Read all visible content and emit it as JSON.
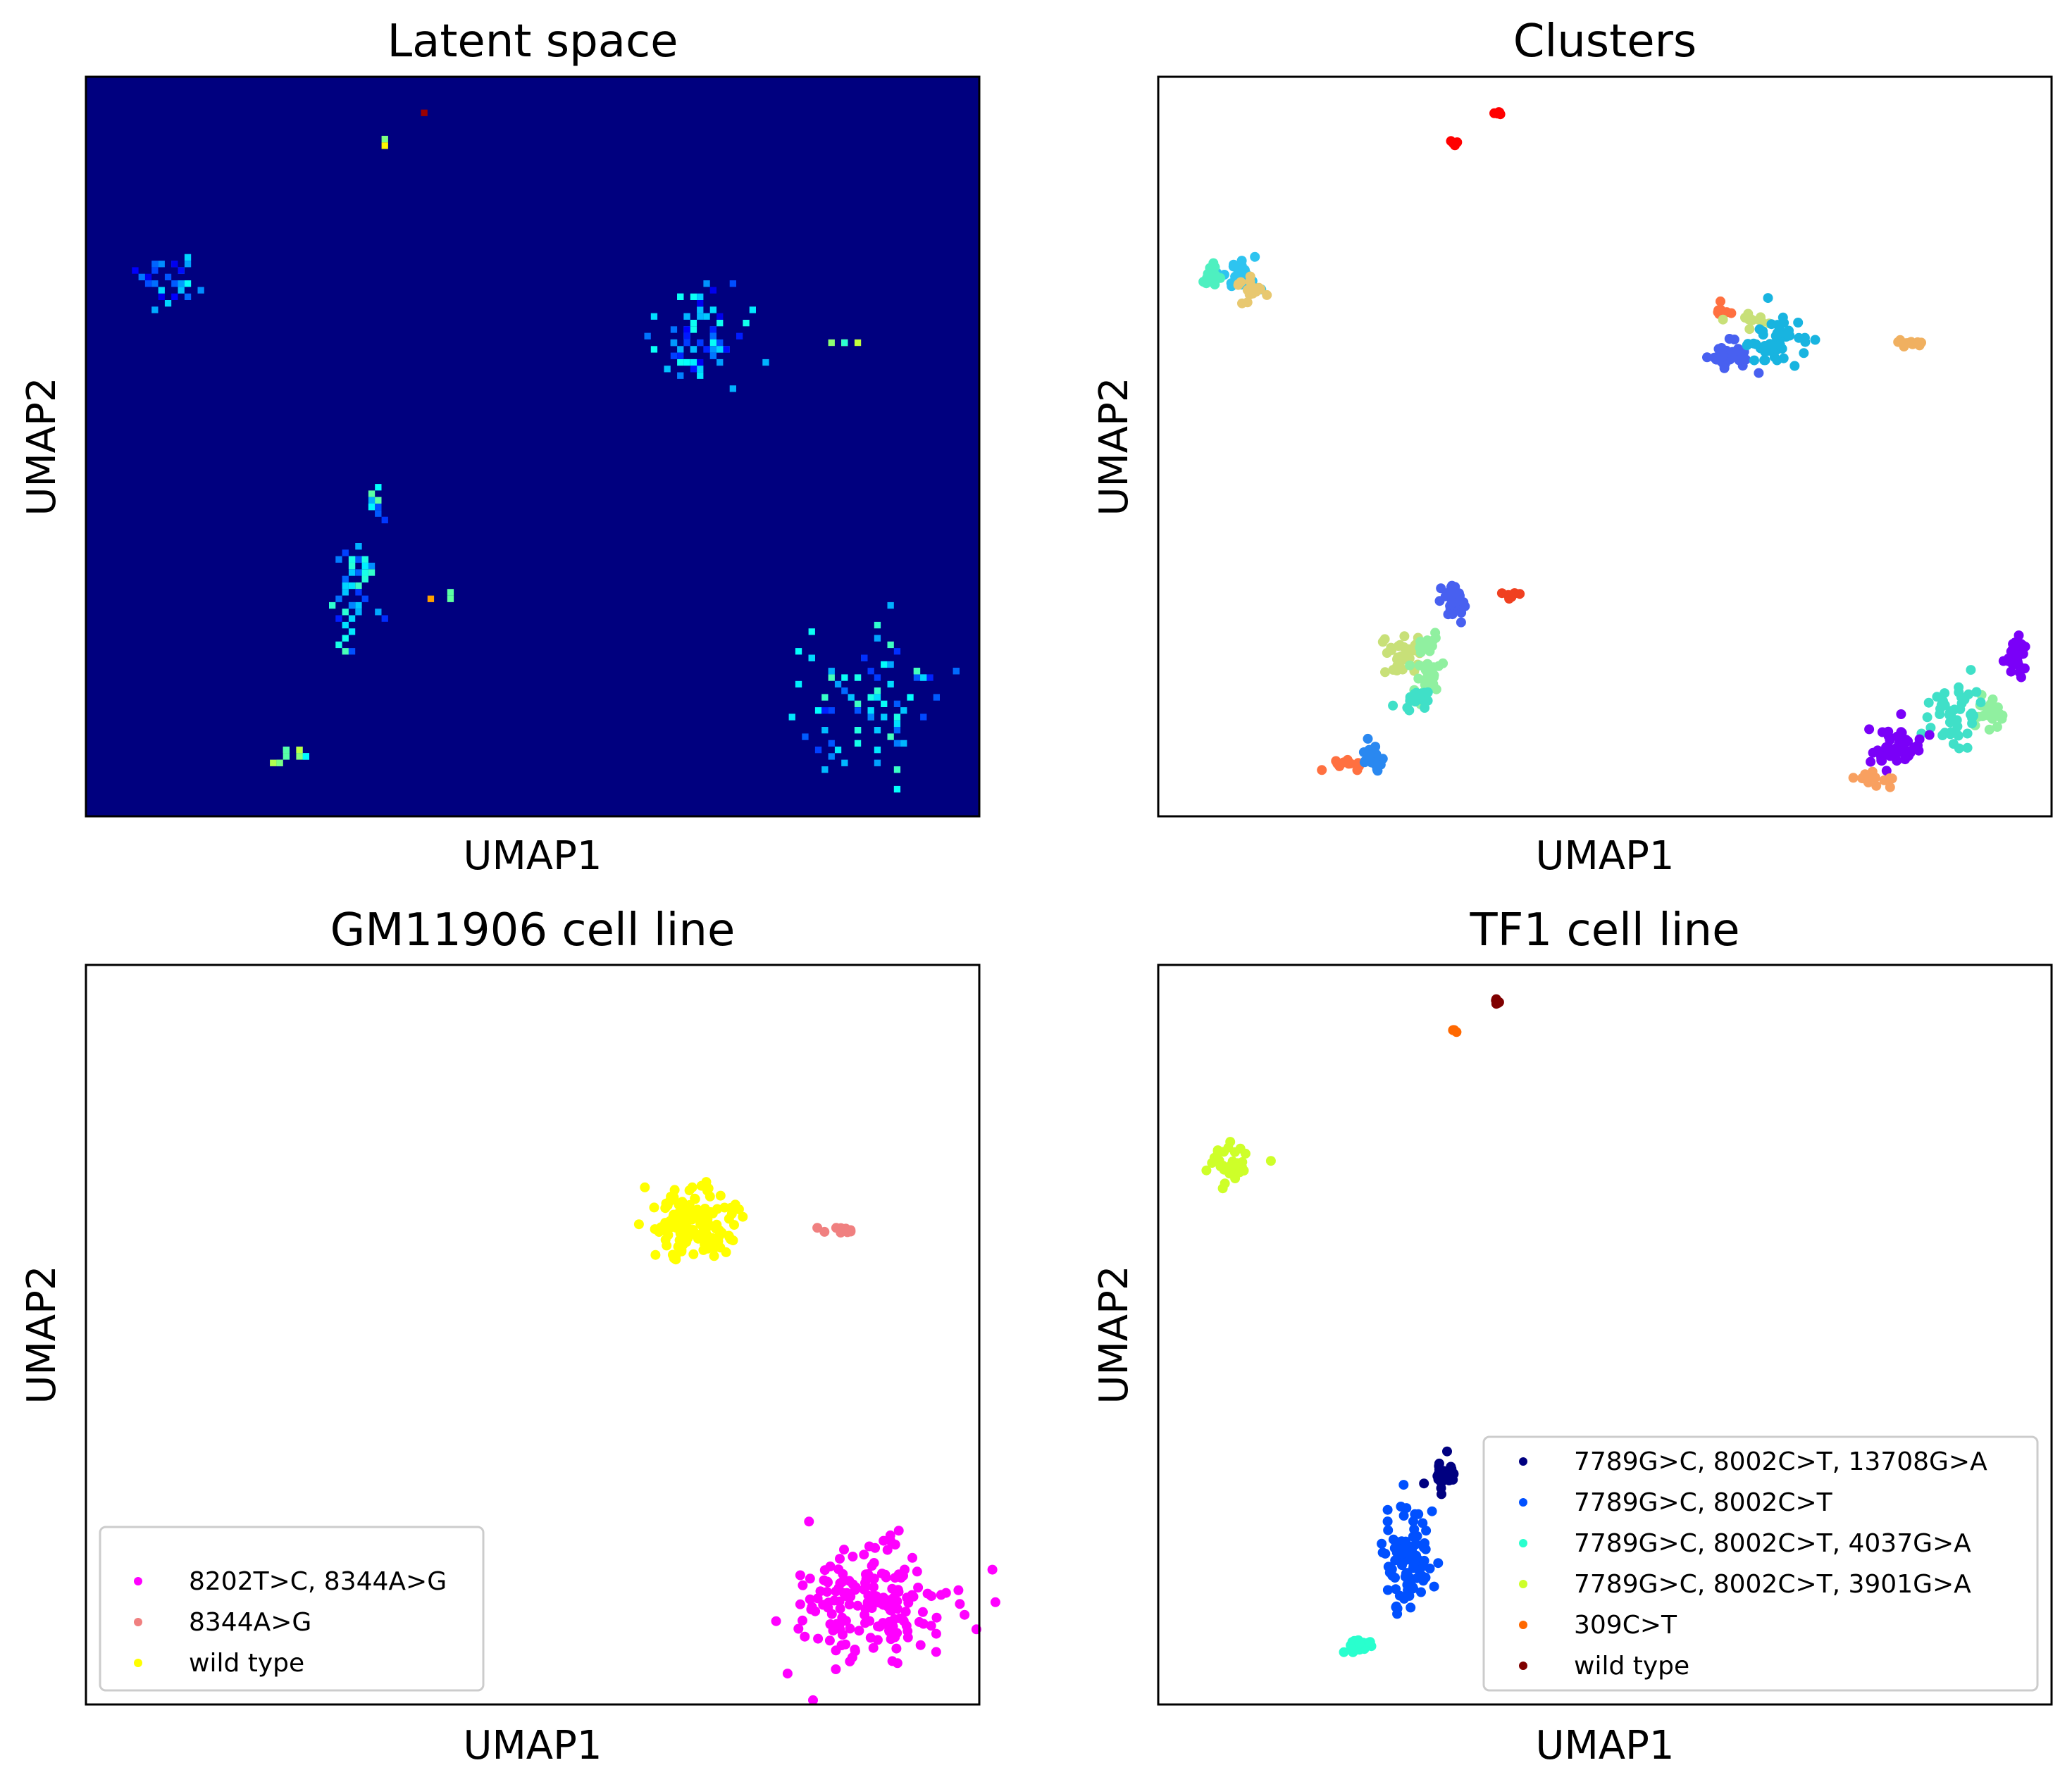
{
  "chart_data": [
    {
      "id": "latent",
      "type": "heatmap",
      "title": "Latent space",
      "xlabel": "UMAP1",
      "ylabel": "UMAP2",
      "colormap": "jet",
      "background_color": "#00007f",
      "xlim": [
        0,
        100
      ],
      "ylim": [
        0,
        100
      ],
      "grid": false,
      "clusters": [
        {
          "x": 9,
          "y": 73,
          "rx": 3,
          "ry": 3,
          "n": 28,
          "level": 0.25
        },
        {
          "x": 68,
          "y": 65,
          "rx": 5,
          "ry": 5,
          "n": 70,
          "level": 0.25
        },
        {
          "x": 85,
          "y": 64,
          "rx": 1.5,
          "ry": 0.5,
          "n": 5,
          "level": 0.55
        },
        {
          "x": 33,
          "y": 91,
          "rx": 0.5,
          "ry": 0.5,
          "n": 2,
          "level": 0.55
        },
        {
          "x": 38,
          "y": 95,
          "rx": 0.3,
          "ry": 0.3,
          "n": 1,
          "level": 0.85
        },
        {
          "x": 30,
          "y": 30,
          "rx": 2,
          "ry": 7,
          "n": 45,
          "level": 0.3
        },
        {
          "x": 33,
          "y": 42,
          "rx": 1,
          "ry": 2,
          "n": 10,
          "level": 0.35
        },
        {
          "x": 40,
          "y": 30,
          "rx": 1,
          "ry": 0.5,
          "n": 3,
          "level": 0.6
        },
        {
          "x": 23,
          "y": 8,
          "rx": 2.5,
          "ry": 1.2,
          "n": 12,
          "level": 0.45
        },
        {
          "x": 88,
          "y": 15,
          "rx": 8,
          "ry": 8,
          "n": 75,
          "level": 0.3
        }
      ]
    },
    {
      "id": "clusters",
      "type": "scatter",
      "title": "Clusters",
      "xlabel": "UMAP1",
      "ylabel": "UMAP2",
      "xlim": [
        0,
        100
      ],
      "ylim": [
        0,
        100
      ],
      "grid": false,
      "series": [
        {
          "color": "#ff0000",
          "groups": [
            {
              "x": 33,
              "y": 91,
              "rx": 0.5,
              "ry": 0.5,
              "n": 5
            },
            {
              "x": 38,
              "y": 95,
              "rx": 0.4,
              "ry": 0.4,
              "n": 5
            }
          ]
        },
        {
          "color": "#2ec4f0",
          "groups": [
            {
              "x": 9,
              "y": 73,
              "rx": 2,
              "ry": 2,
              "n": 25
            }
          ]
        },
        {
          "color": "#4ef0c0",
          "groups": [
            {
              "x": 6,
              "y": 73,
              "rx": 1,
              "ry": 1.5,
              "n": 15
            }
          ]
        },
        {
          "color": "#e8c870",
          "groups": [
            {
              "x": 10,
              "y": 71,
              "rx": 1.5,
              "ry": 1.5,
              "n": 18
            }
          ]
        },
        {
          "color": "#ff7040",
          "groups": [
            {
              "x": 63,
              "y": 68,
              "rx": 1,
              "ry": 1,
              "n": 10
            },
            {
              "x": 21,
              "y": 7,
              "rx": 1.5,
              "ry": 0.5,
              "n": 15
            }
          ]
        },
        {
          "color": "#c8e078",
          "groups": [
            {
              "x": 66,
              "y": 67,
              "rx": 2,
              "ry": 1,
              "n": 12
            },
            {
              "x": 27,
              "y": 22,
              "rx": 2.5,
              "ry": 2,
              "n": 35
            }
          ]
        },
        {
          "color": "#4860f0",
          "groups": [
            {
              "x": 64,
              "y": 62,
              "rx": 2,
              "ry": 1.8,
              "n": 35
            },
            {
              "x": 33,
              "y": 29,
              "rx": 1.2,
              "ry": 2,
              "n": 30
            }
          ]
        },
        {
          "color": "#18b4e0",
          "groups": [
            {
              "x": 69,
              "y": 64,
              "rx": 3,
              "ry": 3,
              "n": 50
            }
          ]
        },
        {
          "color": "#f0b060",
          "groups": [
            {
              "x": 84,
              "y": 64,
              "rx": 1.5,
              "ry": 0.5,
              "n": 10
            }
          ]
        },
        {
          "color": "#f04020",
          "groups": [
            {
              "x": 40,
              "y": 30,
              "rx": 1,
              "ry": 0.5,
              "n": 8
            }
          ]
        },
        {
          "color": "#90f0a0",
          "groups": [
            {
              "x": 30,
              "y": 20,
              "rx": 1.5,
              "ry": 4,
              "n": 40
            },
            {
              "x": 93,
              "y": 14,
              "rx": 1.5,
              "ry": 2,
              "n": 25
            }
          ]
        },
        {
          "color": "#40e0c8",
          "groups": [
            {
              "x": 29,
              "y": 16,
              "rx": 1.5,
              "ry": 1.5,
              "n": 20
            },
            {
              "x": 89,
              "y": 14,
              "rx": 3,
              "ry": 4,
              "n": 45
            }
          ]
        },
        {
          "color": "#2a88f0",
          "groups": [
            {
              "x": 24,
              "y": 8,
              "rx": 1.2,
              "ry": 2,
              "n": 25
            }
          ]
        },
        {
          "color": "#7a00f8",
          "groups": [
            {
              "x": 83,
              "y": 9,
              "rx": 3,
              "ry": 2.5,
              "n": 50
            },
            {
              "x": 96,
              "y": 22,
              "rx": 1.2,
              "ry": 3,
              "n": 30
            }
          ]
        },
        {
          "color": "#f8a060",
          "groups": [
            {
              "x": 80,
              "y": 5,
              "rx": 2.5,
              "ry": 0.8,
              "n": 15
            }
          ]
        }
      ]
    },
    {
      "id": "gm11906",
      "type": "scatter",
      "title": "GM11906 cell line",
      "xlabel": "UMAP1",
      "ylabel": "UMAP2",
      "xlim": [
        0,
        100
      ],
      "ylim": [
        0,
        100
      ],
      "grid": false,
      "legend_position": "lower-left",
      "series": [
        {
          "name": "8202T>C, 8344A>G",
          "color": "#ff00ff",
          "groups": [
            {
              "x": 88,
              "y": 14,
              "rx": 8,
              "ry": 7,
              "n": 180
            }
          ]
        },
        {
          "name": "8344A>G",
          "color": "#f08080",
          "groups": [
            {
              "x": 84,
              "y": 64,
              "rx": 1.5,
              "ry": 0.5,
              "n": 10
            }
          ]
        },
        {
          "name": "wild type",
          "color": "#ffff00",
          "groups": [
            {
              "x": 68,
              "y": 65,
              "rx": 4,
              "ry": 4,
              "n": 150
            }
          ]
        }
      ]
    },
    {
      "id": "tf1",
      "type": "scatter",
      "title": "TF1 cell line",
      "xlabel": "UMAP1",
      "ylabel": "UMAP2",
      "xlim": [
        0,
        100
      ],
      "ylim": [
        0,
        100
      ],
      "grid": false,
      "legend_position": "lower-right",
      "series": [
        {
          "name": "7789G>C, 8002C>T, 13708G>A",
          "color": "#000080",
          "groups": [
            {
              "x": 32,
              "y": 31,
              "rx": 1.5,
              "ry": 2,
              "n": 30
            }
          ]
        },
        {
          "name": "7789G>C, 8002C>T",
          "color": "#0050ff",
          "groups": [
            {
              "x": 28,
              "y": 20,
              "rx": 2.5,
              "ry": 6,
              "n": 100
            }
          ]
        },
        {
          "name": "7789G>C, 8002C>T, 4037G>A",
          "color": "#29ffce",
          "groups": [
            {
              "x": 22,
              "y": 8,
              "rx": 1.5,
              "ry": 1,
              "n": 25
            }
          ]
        },
        {
          "name": "7789G>C, 8002C>T, 3901G>A",
          "color": "#ceff29",
          "groups": [
            {
              "x": 8,
              "y": 73,
              "rx": 2.5,
              "ry": 2.5,
              "n": 40
            }
          ]
        },
        {
          "name": "309C>T",
          "color": "#ff6800",
          "groups": [
            {
              "x": 33,
              "y": 91,
              "rx": 0.5,
              "ry": 0.5,
              "n": 5
            }
          ]
        },
        {
          "name": "wild type",
          "color": "#7f0000",
          "groups": [
            {
              "x": 38,
              "y": 95,
              "rx": 0.4,
              "ry": 0.4,
              "n": 5
            }
          ]
        }
      ]
    }
  ]
}
